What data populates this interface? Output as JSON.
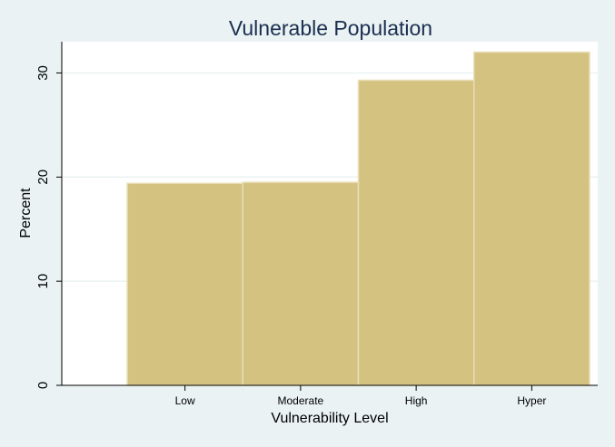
{
  "chart_data": {
    "type": "bar",
    "title": "Vulnerable Population",
    "xlabel": "Vulnerability Level",
    "ylabel": "Percent",
    "categories": [
      "Low",
      "Moderate",
      "High",
      "Hyper"
    ],
    "values": [
      19.4,
      19.5,
      29.3,
      32.0
    ],
    "yticks": [
      0,
      10,
      20,
      30
    ],
    "ylim": [
      0,
      33
    ],
    "grid": true,
    "legend": "none"
  },
  "colors": {
    "background": "#EAF2F3",
    "plot_area": "#FFFFFF",
    "bar_fill": "#D4C281",
    "bar_stroke": "#E9DFB6",
    "title": "#1A2E50",
    "axis": "#000000",
    "grid": "#EAF2F3"
  }
}
